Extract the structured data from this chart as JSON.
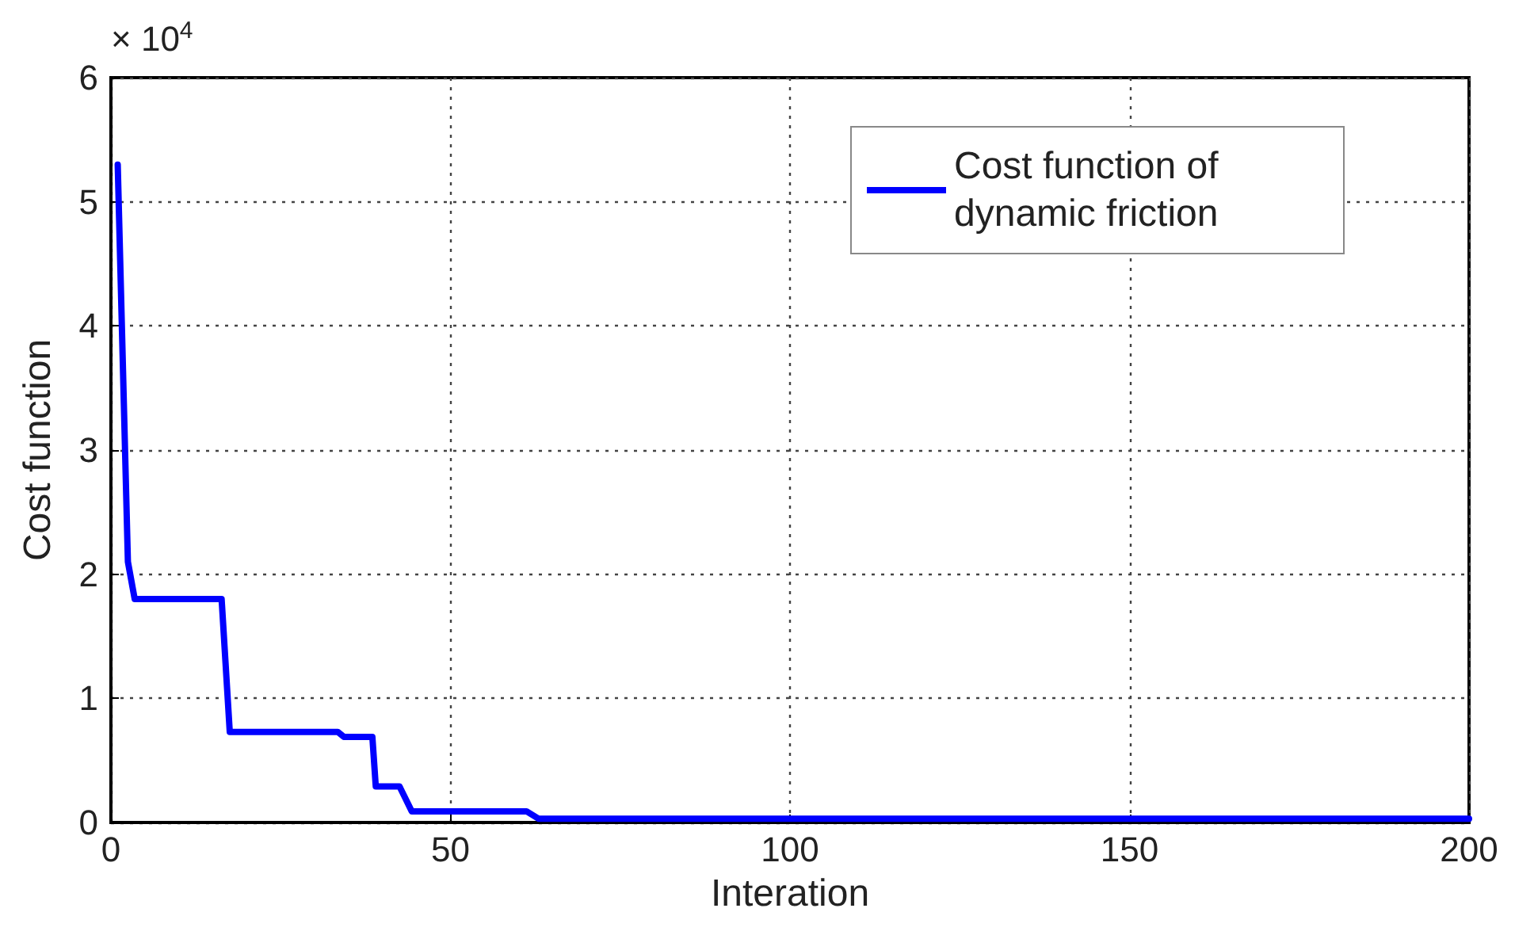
{
  "chart_data": {
    "type": "line",
    "xlabel": "Interation",
    "ylabel": "Cost function",
    "annotations": [
      "× 10$^{4}$"
    ],
    "series": [
      {
        "name": "Cost function of dynamic friction",
        "color": "#0000ff",
        "x": [
          1,
          2.5,
          3.5,
          16.3,
          17.5,
          33.4,
          34.3,
          38.5,
          39,
          42.5,
          44.3,
          61.2,
          63,
          200
        ],
        "values": [
          5.3,
          2.1,
          1.8,
          1.8,
          0.73,
          0.73,
          0.69,
          0.69,
          0.29,
          0.29,
          0.09,
          0.09,
          0.03,
          0.03
        ]
      }
    ],
    "xlim": [
      0,
      200
    ],
    "xticks": [
      0,
      50,
      100,
      150,
      200
    ],
    "ylim": [
      0,
      6
    ],
    "yticks": [
      0,
      1,
      2,
      3,
      4,
      5,
      6
    ],
    "grid": true,
    "legend": "top right",
    "marker": "none",
    "line_style": "solid"
  }
}
